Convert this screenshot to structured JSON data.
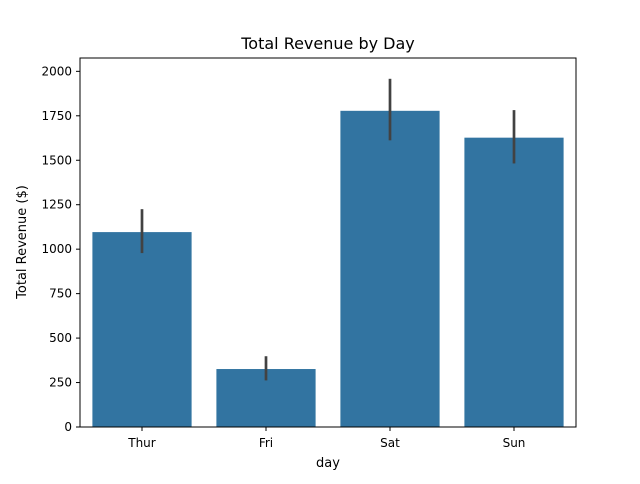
{
  "chart_data": {
    "type": "bar",
    "title": "Total Revenue by Day",
    "xlabel": "day",
    "ylabel": "Total Revenue ($)",
    "categories": [
      "Thur",
      "Fri",
      "Sat",
      "Sun"
    ],
    "values": [
      1096,
      326,
      1778,
      1627
    ],
    "error_low": [
      978,
      262,
      1612,
      1482
    ],
    "error_high": [
      1225,
      398,
      1958,
      1782
    ],
    "ylim": [
      0,
      2075
    ],
    "yticks": [
      0,
      250,
      500,
      750,
      1000,
      1250,
      1500,
      1750,
      2000
    ],
    "ytick_labels": [
      "0",
      "250",
      "500",
      "750",
      "1000",
      "1250",
      "1500",
      "1750",
      "2000"
    ],
    "grid": false,
    "bar_color": "#3274a1",
    "errorbar_color": "#424242"
  }
}
